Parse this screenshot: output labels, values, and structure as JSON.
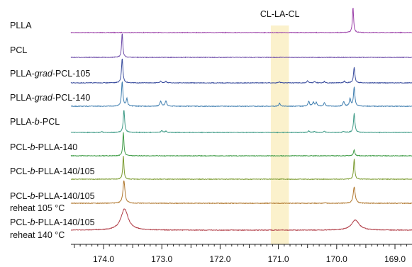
{
  "chart_data": {
    "type": "line",
    "subtype": "stacked-nmr-spectra",
    "title": "",
    "xlabel": "",
    "ylabel": "",
    "x_reversed": true,
    "xlim": [
      174.5,
      168.6
    ],
    "ticks": [
      174.0,
      173.0,
      172.0,
      171.0,
      170.0,
      169.0
    ],
    "tick_labels": [
      "174.0",
      "173.0",
      "172.0",
      "171.0",
      "170.0",
      "169.0"
    ],
    "grid": false,
    "legend": "none",
    "annotation": {
      "text": "CL-LA-CL",
      "x_range": [
        171.13,
        170.82
      ],
      "color": "#fbf1cc"
    },
    "series": [
      {
        "name": [
          "PLLA"
        ],
        "color": "#9b3fa8",
        "peaks": [
          {
            "x": 169.72,
            "h": 1.0,
            "w": 0.012
          }
        ]
      },
      {
        "name": [
          "PCL"
        ],
        "color": "#6c4aa8",
        "peaks": [
          {
            "x": 173.68,
            "h": 1.0,
            "w": 0.012
          }
        ]
      },
      {
        "name": [
          "PLLA-",
          "grad",
          "-PCL-105"
        ],
        "color": "#3a4d9e",
        "peaks": [
          {
            "x": 173.68,
            "h": 1.0,
            "w": 0.014
          },
          {
            "x": 173.02,
            "h": 0.07,
            "w": 0.015
          },
          {
            "x": 172.93,
            "h": 0.06,
            "w": 0.015
          },
          {
            "x": 170.98,
            "h": 0.04,
            "w": 0.015
          },
          {
            "x": 170.5,
            "h": 0.08,
            "w": 0.015
          },
          {
            "x": 170.38,
            "h": 0.06,
            "w": 0.015
          },
          {
            "x": 170.21,
            "h": 0.05,
            "w": 0.015
          },
          {
            "x": 169.87,
            "h": 0.06,
            "w": 0.015
          },
          {
            "x": 169.7,
            "h": 0.62,
            "w": 0.014
          }
        ]
      },
      {
        "name": [
          "PLLA-",
          "grad",
          "-PCL-140"
        ],
        "color": "#3f7eb0",
        "peaks": [
          {
            "x": 173.68,
            "h": 1.0,
            "w": 0.014
          },
          {
            "x": 173.6,
            "h": 0.3,
            "w": 0.014
          },
          {
            "x": 173.02,
            "h": 0.2,
            "w": 0.016
          },
          {
            "x": 172.93,
            "h": 0.22,
            "w": 0.016
          },
          {
            "x": 170.98,
            "h": 0.12,
            "w": 0.016
          },
          {
            "x": 170.48,
            "h": 0.2,
            "w": 0.016
          },
          {
            "x": 170.4,
            "h": 0.16,
            "w": 0.016
          },
          {
            "x": 170.35,
            "h": 0.14,
            "w": 0.016
          },
          {
            "x": 170.21,
            "h": 0.14,
            "w": 0.016
          },
          {
            "x": 169.88,
            "h": 0.18,
            "w": 0.016
          },
          {
            "x": 169.77,
            "h": 0.3,
            "w": 0.014
          },
          {
            "x": 169.7,
            "h": 0.78,
            "w": 0.014
          }
        ]
      },
      {
        "name": [
          "PLLA-",
          "b",
          "-PCL"
        ],
        "color": "#3d9a86",
        "peaks": [
          {
            "x": 173.65,
            "h": 1.0,
            "w": 0.014
          },
          {
            "x": 174.03,
            "h": 0.04,
            "w": 0.014
          },
          {
            "x": 173.0,
            "h": 0.08,
            "w": 0.015
          },
          {
            "x": 172.93,
            "h": 0.06,
            "w": 0.015
          },
          {
            "x": 170.48,
            "h": 0.07,
            "w": 0.015
          },
          {
            "x": 170.38,
            "h": 0.05,
            "w": 0.015
          },
          {
            "x": 170.21,
            "h": 0.05,
            "w": 0.015
          },
          {
            "x": 169.88,
            "h": 0.05,
            "w": 0.015
          },
          {
            "x": 169.7,
            "h": 0.85,
            "w": 0.014
          }
        ]
      },
      {
        "name": [
          "PCL-",
          "b",
          "-PLLA-140"
        ],
        "color": "#3f9c46",
        "peaks": [
          {
            "x": 173.66,
            "h": 1.0,
            "w": 0.012
          },
          {
            "x": 169.7,
            "h": 0.25,
            "w": 0.014
          }
        ]
      },
      {
        "name": [
          "PCL-",
          "b",
          "-PLLA-140/105"
        ],
        "color": "#7a9a2e",
        "peaks": [
          {
            "x": 173.66,
            "h": 1.0,
            "w": 0.012
          },
          {
            "x": 169.7,
            "h": 0.88,
            "w": 0.012
          }
        ]
      },
      {
        "name": [
          "PCL-",
          "b",
          "-PLLA-140/105"
        ],
        "name2": "reheat 105 °C",
        "color": "#b0772e",
        "peaks": [
          {
            "x": 173.65,
            "h": 1.0,
            "w": 0.02
          },
          {
            "x": 170.2,
            "h": 0.03,
            "w": 0.015
          },
          {
            "x": 169.7,
            "h": 0.72,
            "w": 0.02
          }
        ]
      },
      {
        "name": [
          "PCL-",
          "b",
          "-PLLA-140/105"
        ],
        "name2": "reheat 140 °C",
        "color": "#b03a44",
        "peaks": [
          {
            "x": 173.64,
            "h": 1.0,
            "w": 0.075
          },
          {
            "x": 169.68,
            "h": 0.48,
            "w": 0.08
          }
        ]
      }
    ]
  }
}
